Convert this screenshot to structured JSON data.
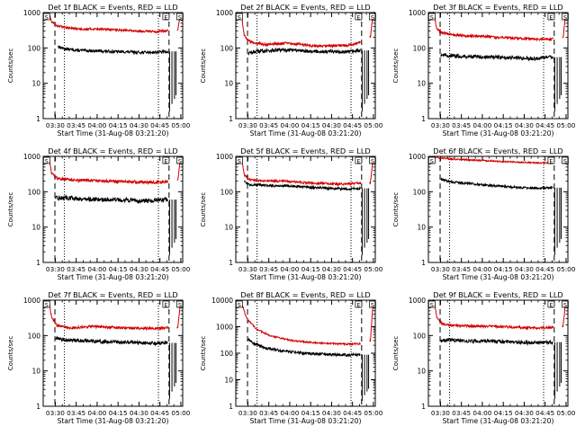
{
  "colors": {
    "events": "#000000",
    "lld": "#d40000",
    "axis": "#000000"
  },
  "shared": {
    "ylabel": "Counts/sec",
    "xlabel": "Start Time (31-Aug-08 03:21:20)",
    "xtick_labels": [
      "03:30",
      "03:45",
      "04:00",
      "04:15",
      "04:30",
      "04:45",
      "05:00"
    ],
    "xtick_minutes": [
      8.67,
      23.67,
      38.67,
      53.67,
      68.67,
      83.67,
      98.67
    ],
    "ytick_labels": [
      "1",
      "10",
      "100",
      "1000",
      "10000"
    ],
    "xlim_minutes_from_start": [
      0,
      100
    ],
    "yscale": "log",
    "flag_labels": [
      "S",
      "E",
      "S"
    ]
  },
  "chart_data": [
    {
      "type": "line",
      "title": "Det 1f BLACK = Events, RED = LLD",
      "ylim": [
        1,
        1000
      ],
      "dashed_x": [
        8.4,
        90.2
      ],
      "dotted_x": [
        15.2,
        82.6
      ],
      "gap": [
        89.7,
        95.8
      ],
      "series": [
        {
          "name": "Events",
          "points": [
            [
              10.5,
              110
            ],
            [
              15,
              95
            ],
            [
              25,
              85
            ],
            [
              40,
              82
            ],
            [
              55,
              78
            ],
            [
              70,
              75
            ],
            [
              82,
              76
            ],
            [
              89.5,
              80
            ]
          ],
          "noise": 0.04
        },
        {
          "name": "LLD",
          "points": [
            [
              0,
              1000
            ],
            [
              4,
              1000
            ],
            [
              6,
              550
            ],
            [
              10,
              420
            ],
            [
              20,
              360
            ],
            [
              30,
              340
            ],
            [
              40,
              345
            ],
            [
              55,
              320
            ],
            [
              70,
              300
            ],
            [
              80,
              290
            ],
            [
              89.5,
              310
            ],
            [
              96.5,
              320
            ],
            [
              98.5,
              1000
            ],
            [
              100,
              1000
            ]
          ],
          "noise": 0.03
        }
      ]
    },
    {
      "type": "line",
      "title": "Det 2f BLACK = Events, RED = LLD",
      "ylim": [
        1,
        1000
      ],
      "dashed_x": [
        8.4,
        90.2
      ],
      "dotted_x": [
        15.2,
        82.6
      ],
      "gap": [
        89.7,
        95.8
      ],
      "series": [
        {
          "name": "Events",
          "points": [
            [
              8.8,
              70
            ],
            [
              15,
              80
            ],
            [
              25,
              85
            ],
            [
              40,
              88
            ],
            [
              55,
              80
            ],
            [
              70,
              78
            ],
            [
              82,
              78
            ],
            [
              89.5,
              85
            ]
          ],
          "noise": 0.05
        },
        {
          "name": "LLD",
          "points": [
            [
              0,
              1000
            ],
            [
              4,
              1000
            ],
            [
              6,
              220
            ],
            [
              10,
              150
            ],
            [
              20,
              125
            ],
            [
              35,
              135
            ],
            [
              45,
              130
            ],
            [
              55,
              115
            ],
            [
              70,
              115
            ],
            [
              82,
              120
            ],
            [
              89.5,
              150
            ],
            [
              96.5,
              200
            ],
            [
              98.5,
              1000
            ],
            [
              100,
              1000
            ]
          ],
          "noise": 0.04
        }
      ]
    },
    {
      "type": "line",
      "title": "Det 3f BLACK = Events, RED = LLD",
      "ylim": [
        1,
        1000
      ],
      "dashed_x": [
        8.4,
        90.2
      ],
      "dotted_x": [
        15.2,
        82.6
      ],
      "gap": [
        89.7,
        95.8
      ],
      "series": [
        {
          "name": "Events",
          "points": [
            [
              8.8,
              65
            ],
            [
              15,
              60
            ],
            [
              30,
              57
            ],
            [
              45,
              55
            ],
            [
              60,
              53
            ],
            [
              75,
              50
            ],
            [
              89.5,
              55
            ]
          ],
          "noise": 0.05
        },
        {
          "name": "LLD",
          "points": [
            [
              0,
              1000
            ],
            [
              4,
              1000
            ],
            [
              6,
              350
            ],
            [
              10,
              270
            ],
            [
              20,
              230
            ],
            [
              35,
              215
            ],
            [
              50,
              200
            ],
            [
              65,
              185
            ],
            [
              80,
              175
            ],
            [
              89.5,
              180
            ],
            [
              96.5,
              190
            ],
            [
              98.5,
              1000
            ],
            [
              100,
              1000
            ]
          ],
          "noise": 0.035
        }
      ]
    },
    {
      "type": "line",
      "title": "Det 4f BLACK = Events, RED = LLD",
      "ylim": [
        1,
        1000
      ],
      "dashed_x": [
        8.4,
        90.2
      ],
      "dotted_x": [
        15.2,
        82.6
      ],
      "gap": [
        89.7,
        95.8
      ],
      "series": [
        {
          "name": "Events",
          "points": [
            [
              8.8,
              65
            ],
            [
              15,
              68
            ],
            [
              30,
              62
            ],
            [
              45,
              60
            ],
            [
              60,
              58
            ],
            [
              75,
              55
            ],
            [
              89.5,
              60
            ]
          ],
          "noise": 0.06
        },
        {
          "name": "LLD",
          "points": [
            [
              0,
              1000
            ],
            [
              4,
              1000
            ],
            [
              6,
              320
            ],
            [
              10,
              240
            ],
            [
              20,
              215
            ],
            [
              35,
              205
            ],
            [
              50,
              195
            ],
            [
              65,
              190
            ],
            [
              80,
              185
            ],
            [
              89.5,
              195
            ],
            [
              96.5,
              200
            ],
            [
              98.5,
              1000
            ],
            [
              100,
              1000
            ]
          ],
          "noise": 0.04
        }
      ]
    },
    {
      "type": "line",
      "title": "Det 5f BLACK = Events, RED = LLD",
      "ylim": [
        1,
        1000
      ],
      "dashed_x": [
        8.4,
        90.2
      ],
      "dotted_x": [
        15.2,
        82.6
      ],
      "gap": [
        89.7,
        95.8
      ],
      "series": [
        {
          "name": "Events",
          "points": [
            [
              6,
              200
            ],
            [
              10,
              160
            ],
            [
              20,
              150
            ],
            [
              35,
              148
            ],
            [
              50,
              135
            ],
            [
              65,
              125
            ],
            [
              80,
              120
            ],
            [
              89.5,
              125
            ]
          ],
          "noise": 0.035
        },
        {
          "name": "LLD",
          "points": [
            [
              0,
              1000
            ],
            [
              4,
              1000
            ],
            [
              6,
              300
            ],
            [
              10,
              220
            ],
            [
              20,
              200
            ],
            [
              35,
              200
            ],
            [
              50,
              180
            ],
            [
              65,
              170
            ],
            [
              80,
              165
            ],
            [
              89.5,
              175
            ],
            [
              96.5,
              180
            ],
            [
              98.5,
              1000
            ],
            [
              100,
              1000
            ]
          ],
          "noise": 0.03
        }
      ]
    },
    {
      "type": "line",
      "title": "Det 6f BLACK = Events, RED = LLD",
      "ylim": [
        1,
        1000
      ],
      "dashed_x": [
        8.4,
        90.2
      ],
      "dotted_x": [
        15.2,
        82.6
      ],
      "gap": [
        89.7,
        95.8
      ],
      "series": [
        {
          "name": "Events",
          "points": [
            [
              8.8,
              230
            ],
            [
              15,
              190
            ],
            [
              30,
              170
            ],
            [
              45,
              150
            ],
            [
              60,
              135
            ],
            [
              75,
              125
            ],
            [
              89.5,
              130
            ]
          ],
          "noise": 0.03
        },
        {
          "name": "LLD",
          "points": [
            [
              0,
              1000
            ],
            [
              8,
              900
            ],
            [
              20,
              820
            ],
            [
              40,
              760
            ],
            [
              60,
              700
            ],
            [
              80,
              650
            ],
            [
              89.5,
              660
            ],
            [
              96.5,
              680
            ],
            [
              98.5,
              850
            ],
            [
              100,
              850
            ]
          ],
          "noise": 0.02
        }
      ]
    },
    {
      "type": "line",
      "title": "Det 7f BLACK = Events, RED = LLD",
      "ylim": [
        1,
        1000
      ],
      "dashed_x": [
        8.4,
        90.2
      ],
      "dotted_x": [
        15.2,
        82.6
      ],
      "gap": [
        89.7,
        95.8
      ],
      "series": [
        {
          "name": "Events",
          "points": [
            [
              8.8,
              85
            ],
            [
              15,
              75
            ],
            [
              30,
              70
            ],
            [
              45,
              68
            ],
            [
              60,
              65
            ],
            [
              75,
              60
            ],
            [
              89.5,
              62
            ]
          ],
          "noise": 0.05
        },
        {
          "name": "LLD",
          "points": [
            [
              0,
              1000
            ],
            [
              4,
              1000
            ],
            [
              6,
              330
            ],
            [
              10,
              190
            ],
            [
              20,
              165
            ],
            [
              35,
              180
            ],
            [
              50,
              170
            ],
            [
              65,
              160
            ],
            [
              80,
              160
            ],
            [
              89.5,
              165
            ],
            [
              96.5,
              170
            ],
            [
              98.5,
              1000
            ],
            [
              100,
              1000
            ]
          ],
          "noise": 0.035
        }
      ]
    },
    {
      "type": "line",
      "title": "Det 8f BLACK = Events, RED = LLD",
      "ylim": [
        1,
        10000
      ],
      "dashed_x": [
        8.4,
        90.2
      ],
      "dotted_x": [
        15.2,
        82.6
      ],
      "gap": [
        89.7,
        95.8
      ],
      "series": [
        {
          "name": "Events",
          "points": [
            [
              8.8,
              350
            ],
            [
              12,
              250
            ],
            [
              20,
              160
            ],
            [
              35,
              120
            ],
            [
              50,
              100
            ],
            [
              65,
              90
            ],
            [
              80,
              85
            ],
            [
              89.5,
              88
            ]
          ],
          "noise": 0.05
        },
        {
          "name": "LLD",
          "points": [
            [
              0,
              9000
            ],
            [
              4,
              8000
            ],
            [
              8,
              2000
            ],
            [
              15,
              800
            ],
            [
              25,
              450
            ],
            [
              40,
              300
            ],
            [
              55,
              250
            ],
            [
              70,
              230
            ],
            [
              80,
              220
            ],
            [
              89.5,
              230
            ],
            [
              96.5,
              300
            ],
            [
              98.5,
              9000
            ],
            [
              100,
              9000
            ]
          ],
          "noise": 0.03
        }
      ]
    },
    {
      "type": "line",
      "title": "Det 9f BLACK = Events, RED = LLD",
      "ylim": [
        1,
        1000
      ],
      "dashed_x": [
        8.4,
        90.2
      ],
      "dotted_x": [
        15.2,
        82.6
      ],
      "gap": [
        89.7,
        95.8
      ],
      "series": [
        {
          "name": "Events",
          "points": [
            [
              8.8,
              70
            ],
            [
              15,
              75
            ],
            [
              30,
              70
            ],
            [
              45,
              68
            ],
            [
              60,
              65
            ],
            [
              75,
              62
            ],
            [
              89.5,
              65
            ]
          ],
          "noise": 0.05
        },
        {
          "name": "LLD",
          "points": [
            [
              0,
              1000
            ],
            [
              4,
              1000
            ],
            [
              6,
              330
            ],
            [
              10,
              210
            ],
            [
              20,
              190
            ],
            [
              35,
              185
            ],
            [
              50,
              180
            ],
            [
              65,
              170
            ],
            [
              80,
              165
            ],
            [
              89.5,
              170
            ],
            [
              96.5,
              180
            ],
            [
              98.5,
              1000
            ],
            [
              100,
              1000
            ]
          ],
          "noise": 0.035
        }
      ]
    }
  ]
}
